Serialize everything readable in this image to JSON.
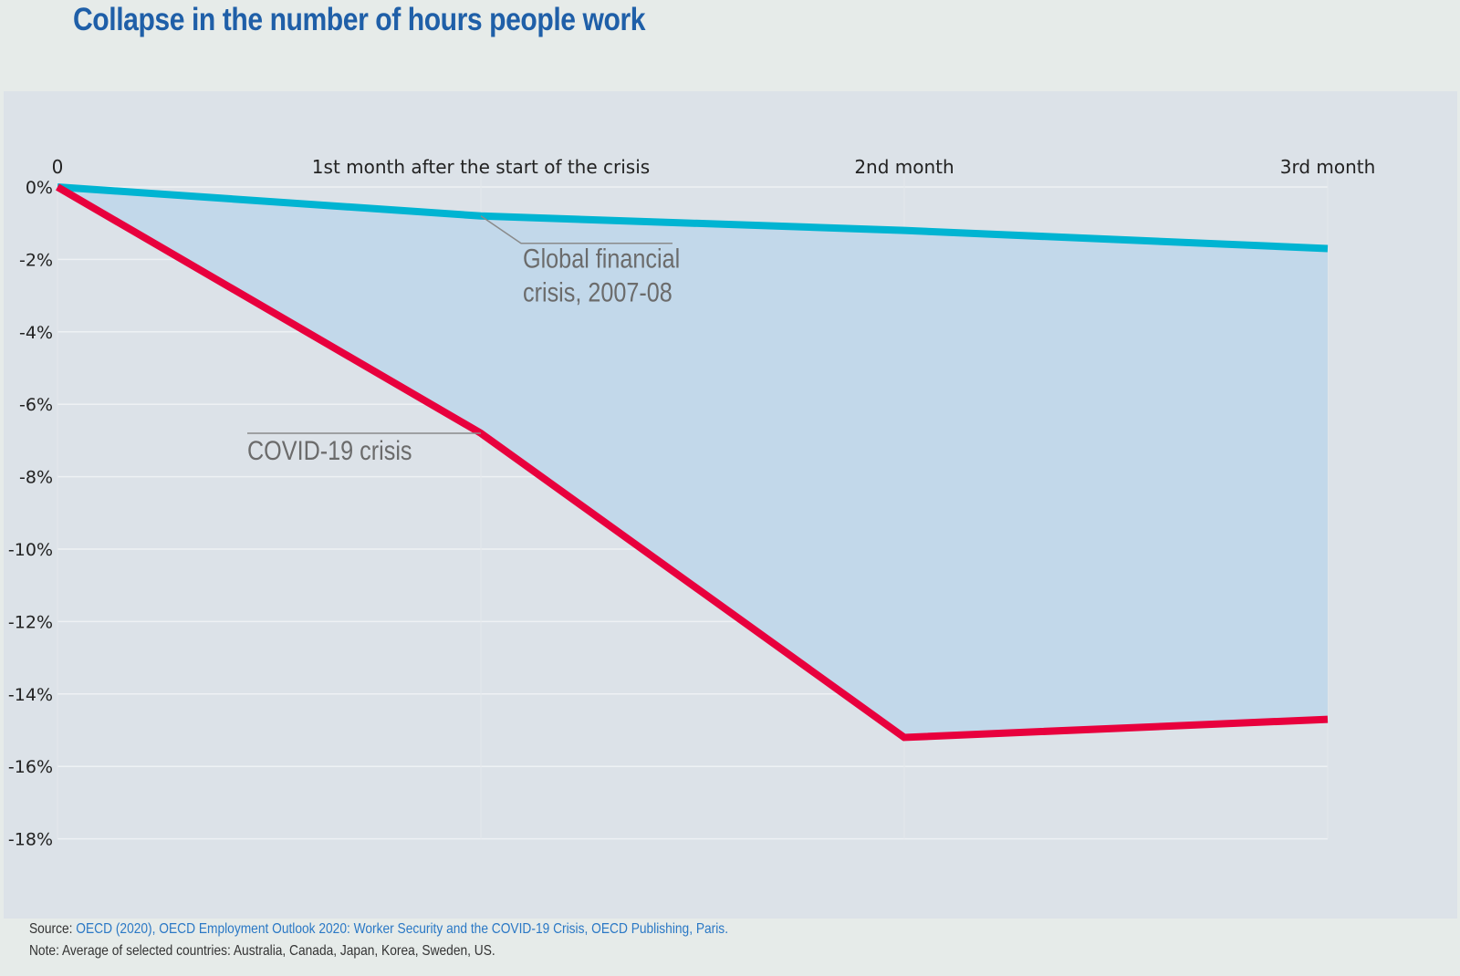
{
  "title": "Collapse in the number of hours people work",
  "source_label": "Source:",
  "source_link": "OECD (2020), OECD Employment Outlook 2020: Worker Security and the COVID-19 Crisis, OECD Publishing, Paris.",
  "note": "Note: Average of selected countries: Australia, Canada, Japan, Korea, Sweden, US.",
  "colors": {
    "covid": "#e8003d",
    "gfc": "#00b4d2",
    "fill": "#c2d8ea"
  },
  "chart_data": {
    "type": "line",
    "x": [
      0,
      1,
      2,
      3
    ],
    "categories": [
      "0",
      "1st month after the start of the crisis",
      "2nd month",
      "3rd month"
    ],
    "yticks": [
      "0%",
      "-2%",
      "-4%",
      "-6%",
      "-8%",
      "-10%",
      "-12%",
      "-14%",
      "-16%",
      "-18%"
    ],
    "ylim": [
      -18,
      0
    ],
    "series": [
      {
        "name": "Global financial crisis, 2007-08",
        "values": [
          0,
          -0.8,
          -1.2,
          -1.7
        ]
      },
      {
        "name": "COVID-19 crisis",
        "values": [
          0,
          -6.8,
          -15.2,
          -14.7
        ]
      }
    ],
    "annotations": {
      "gfc_line1": "Global financial",
      "gfc_line2": "crisis, 2007-08",
      "covid": "COVID-19 crisis"
    },
    "shaded_area_between_series": true,
    "x_axis_position": "top"
  }
}
